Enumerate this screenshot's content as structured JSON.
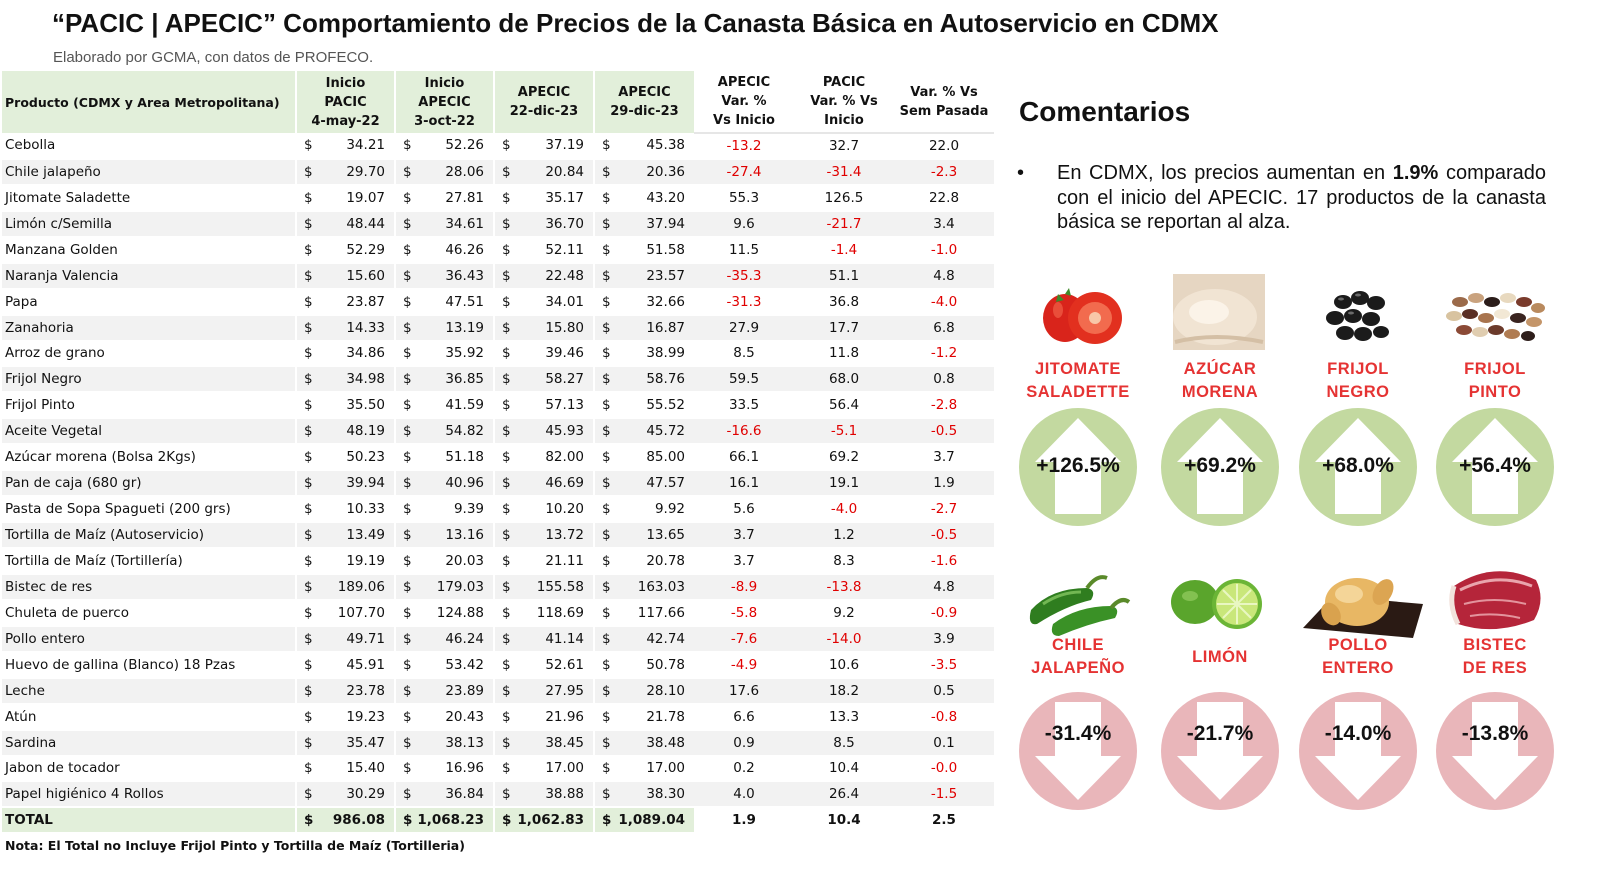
{
  "header": {
    "title": "“PACIC | APECIC” Comportamiento de Precios de la Canasta Básica en Autoservicio en CDMX",
    "subtitle": "Elaborado por GCMA, con datos de PROFECO."
  },
  "table": {
    "columns": {
      "product": "Producto (CDMX y Area Metropolitana)",
      "c1": [
        "Inicio",
        "PACIC",
        "4-may-22"
      ],
      "c2": [
        "Inicio",
        "APECIC",
        "3-oct-22"
      ],
      "c3": [
        "APECIC",
        "22-dic-23"
      ],
      "c4": [
        "APECIC",
        "29-dic-23"
      ],
      "c5": [
        "APECIC",
        "Var. %",
        "Vs  Inicio"
      ],
      "c6": [
        "PACIC",
        "Var. % Vs",
        "Inicio"
      ],
      "c7": [
        "Var. % Vs",
        "Sem Pasada"
      ]
    },
    "currency": "$",
    "rows": [
      [
        "Cebolla",
        "34.21",
        "52.26",
        "37.19",
        "45.38",
        "-13.2",
        "32.7",
        "22.0"
      ],
      [
        "Chile jalapeño",
        "29.70",
        "28.06",
        "20.84",
        "20.36",
        "-27.4",
        "-31.4",
        "-2.3"
      ],
      [
        "Jitomate Saladette",
        "19.07",
        "27.81",
        "35.17",
        "43.20",
        "55.3",
        "126.5",
        "22.8"
      ],
      [
        "Limón c/Semilla",
        "48.44",
        "34.61",
        "36.70",
        "37.94",
        "9.6",
        "-21.7",
        "3.4"
      ],
      [
        "Manzana Golden",
        "52.29",
        "46.26",
        "52.11",
        "51.58",
        "11.5",
        "-1.4",
        "-1.0"
      ],
      [
        "Naranja Valencia",
        "15.60",
        "36.43",
        "22.48",
        "23.57",
        "-35.3",
        "51.1",
        "4.8"
      ],
      [
        "Papa",
        "23.87",
        "47.51",
        "34.01",
        "32.66",
        "-31.3",
        "36.8",
        "-4.0"
      ],
      [
        "Zanahoria",
        "14.33",
        "13.19",
        "15.80",
        "16.87",
        "27.9",
        "17.7",
        "6.8"
      ],
      [
        "Arroz de grano",
        "34.86",
        "35.92",
        "39.46",
        "38.99",
        "8.5",
        "11.8",
        "-1.2"
      ],
      [
        "Frijol Negro",
        "34.98",
        "36.85",
        "58.27",
        "58.76",
        "59.5",
        "68.0",
        "0.8"
      ],
      [
        "Frijol Pinto",
        "35.50",
        "41.59",
        "57.13",
        "55.52",
        "33.5",
        "56.4",
        "-2.8"
      ],
      [
        "Aceite Vegetal",
        "48.19",
        "54.82",
        "45.93",
        "45.72",
        "-16.6",
        "-5.1",
        "-0.5"
      ],
      [
        "Azúcar morena (Bolsa 2Kgs)",
        "50.23",
        "51.18",
        "82.00",
        "85.00",
        "66.1",
        "69.2",
        "3.7"
      ],
      [
        "Pan de caja (680 gr)",
        "39.94",
        "40.96",
        "46.69",
        "47.57",
        "16.1",
        "19.1",
        "1.9"
      ],
      [
        "Pasta de Sopa Spagueti (200 grs)",
        "10.33",
        "9.39",
        "10.20",
        "9.92",
        "5.6",
        "-4.0",
        "-2.7"
      ],
      [
        "Tortilla de Maíz (Autoservicio)",
        "13.49",
        "13.16",
        "13.72",
        "13.65",
        "3.7",
        "1.2",
        "-0.5"
      ],
      [
        "Tortilla de Maíz (Tortillería)",
        "19.19",
        "20.03",
        "21.11",
        "20.78",
        "3.7",
        "8.3",
        "-1.6"
      ],
      [
        "Bistec de res",
        "189.06",
        "179.03",
        "155.58",
        "163.03",
        "-8.9",
        "-13.8",
        "4.8"
      ],
      [
        "Chuleta de puerco",
        "107.70",
        "124.88",
        "118.69",
        "117.66",
        "-5.8",
        "9.2",
        "-0.9"
      ],
      [
        "Pollo entero",
        "49.71",
        "46.24",
        "41.14",
        "42.74",
        "-7.6",
        "-14.0",
        "3.9"
      ],
      [
        "Huevo de gallina (Blanco) 18 Pzas",
        "45.91",
        "53.42",
        "52.61",
        "50.78",
        "-4.9",
        "10.6",
        "-3.5"
      ],
      [
        "Leche",
        "23.78",
        "23.89",
        "27.95",
        "28.10",
        "17.6",
        "18.2",
        "0.5"
      ],
      [
        "Atún",
        "19.23",
        "20.43",
        "21.96",
        "21.78",
        "6.6",
        "13.3",
        "-0.8"
      ],
      [
        "Sardina",
        "35.47",
        "38.13",
        "38.45",
        "38.48",
        "0.9",
        "8.5",
        "0.1"
      ],
      [
        "Jabon de tocador",
        "15.40",
        "16.96",
        "17.00",
        "17.00",
        "0.2",
        "10.4",
        "-0.0"
      ],
      [
        "Papel higiénico 4 Rollos",
        "30.29",
        "36.84",
        "38.88",
        "38.30",
        "4.0",
        "26.4",
        "-1.5"
      ]
    ],
    "total": [
      "TOTAL",
      "986.08",
      "1,068.23",
      "1,062.83",
      "1,089.04",
      "1.9",
      "10.4",
      "2.5"
    ],
    "negative_color": "#e00000",
    "header_fill": "#e2efda"
  },
  "note": "Nota: El Total no Incluye Frijol Pinto y Tortilla de Maíz (Tortilleria)",
  "comments": {
    "title": "Comentarios",
    "bullet": "•",
    "text_before": "En CDMX, los precios aumentan en",
    "highlight": "1.9%",
    "text_after": "comparado con el inicio del APECIC. 17 productos de la canasta básica se reportan al alza."
  },
  "highlights_up": [
    {
      "label": [
        "JITOMATE",
        "SALADETTE"
      ],
      "value": "+126.5%",
      "icon": "tomato-icon"
    },
    {
      "label": [
        "AZÚCAR",
        "MORENA"
      ],
      "value": "+69.2%",
      "icon": "sugar-icon"
    },
    {
      "label": [
        "FRIJOL",
        "NEGRO"
      ],
      "value": "+68.0%",
      "icon": "black-beans-icon"
    },
    {
      "label": [
        "FRIJOL",
        "PINTO"
      ],
      "value": "+56.4%",
      "icon": "pinto-beans-icon"
    }
  ],
  "highlights_down": [
    {
      "label": [
        "CHILE",
        "JALAPEÑO"
      ],
      "value": "-31.4%",
      "icon": "jalapeno-icon"
    },
    {
      "label": [
        "LIMÓN"
      ],
      "value": "-21.7%",
      "icon": "lime-icon"
    },
    {
      "label": [
        "POLLO",
        "ENTERO"
      ],
      "value": "-14.0%",
      "icon": "chicken-icon"
    },
    {
      "label": [
        "BISTEC",
        "DE RES"
      ],
      "value": "-13.8%",
      "icon": "beef-steak-icon"
    }
  ],
  "colors": {
    "label_red": "#e53333",
    "up_circle": "#c3d9a0",
    "down_circle": "#e9b6ba"
  }
}
